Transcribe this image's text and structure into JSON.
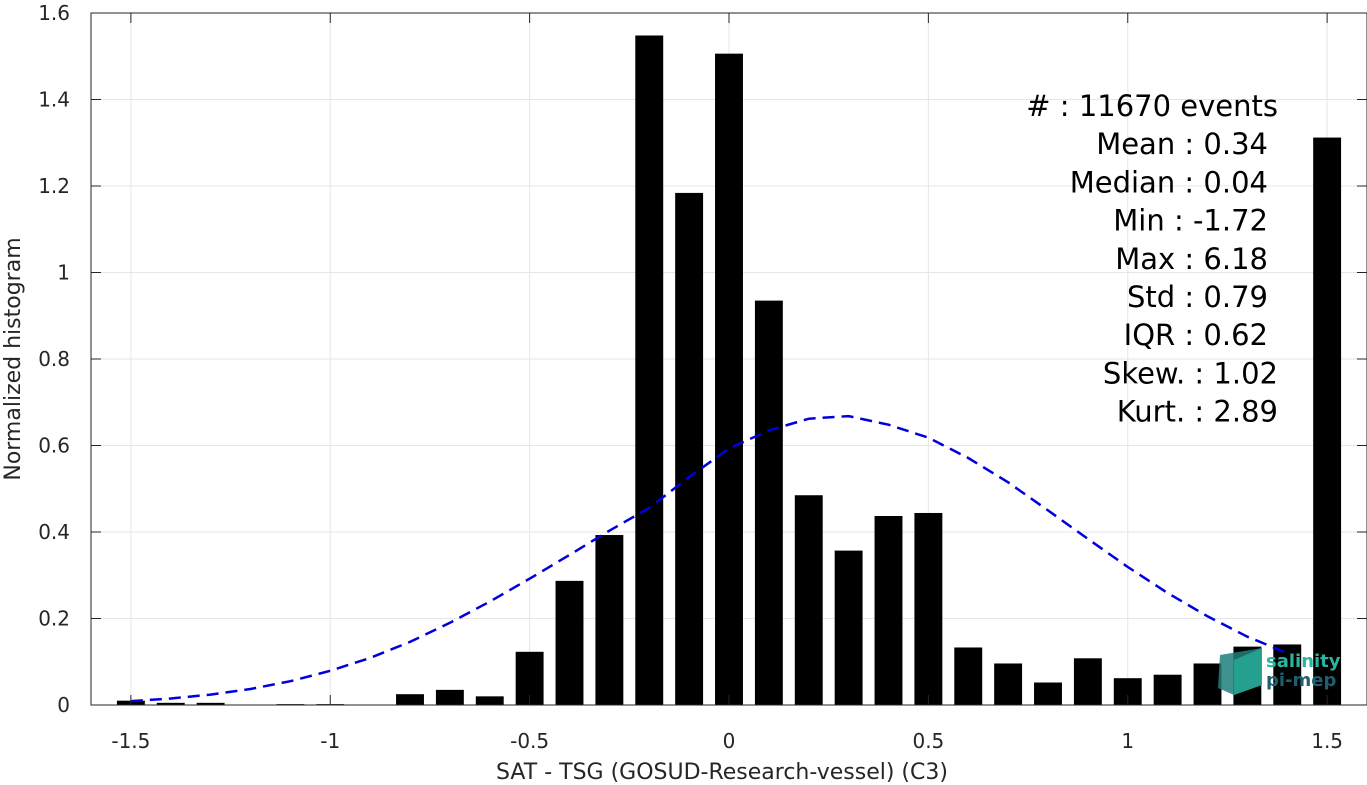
{
  "chart_data": {
    "type": "bar",
    "xlabel": "SAT - TSG (GOSUD-Research-vessel) (C3)",
    "ylabel": "Normalized histogram",
    "xlim": [
      -1.6,
      1.6
    ],
    "ylim": [
      0,
      1.6
    ],
    "grid": true,
    "x_ticks": [
      -1.5,
      -1,
      -0.5,
      0,
      0.5,
      1,
      1.5
    ],
    "x_tick_labels": [
      "-1.5",
      "-1",
      "-0.5",
      "0",
      "0.5",
      "1",
      "1.5"
    ],
    "y_ticks": [
      0,
      0.2,
      0.4,
      0.6,
      0.8,
      1,
      1.2,
      1.4,
      1.6
    ],
    "y_tick_labels": [
      "0",
      "0.2",
      "0.4",
      "0.6",
      "0.8",
      "1",
      "1.2",
      "1.4",
      "1.6"
    ],
    "bar_width": 0.07,
    "colors": {
      "bars": "#000000",
      "fit": "#0000dd",
      "grid": "#e6e6e6",
      "axis": "#262626",
      "logo_top": "#2bb5a0",
      "logo_bottom": "#1f5f6e"
    },
    "series": [
      {
        "x": [
          -1.5,
          -1.4,
          -1.3,
          -1.2,
          -1.1,
          -1.0,
          -0.9,
          -0.8,
          -0.7,
          -0.6,
          -0.5,
          -0.4,
          -0.3,
          -0.2,
          -0.1,
          0.0,
          0.1,
          0.2,
          0.3,
          0.4,
          0.5,
          0.6,
          0.7,
          0.8,
          0.9,
          1.0,
          1.1,
          1.2,
          1.3,
          1.4,
          1.5
        ],
        "values": [
          0.01,
          0.005,
          0.005,
          0.0,
          0.002,
          0.002,
          0.0,
          0.025,
          0.035,
          0.02,
          0.123,
          0.287,
          0.393,
          1.548,
          1.184,
          1.506,
          0.935,
          0.485,
          0.357,
          0.437,
          0.444,
          0.133,
          0.096,
          0.052,
          0.108,
          0.062,
          0.07,
          0.096,
          0.135,
          0.14,
          1.312
        ]
      },
      {
        "type": "line",
        "style": "dashed",
        "x": [
          -1.5,
          -1.4,
          -1.3,
          -1.2,
          -1.1,
          -1.0,
          -0.9,
          -0.8,
          -0.7,
          -0.6,
          -0.5,
          -0.4,
          -0.3,
          -0.2,
          -0.1,
          0.0,
          0.1,
          0.2,
          0.3,
          0.4,
          0.5,
          0.6,
          0.7,
          0.8,
          0.9,
          1.0,
          1.1,
          1.2,
          1.3,
          1.4
        ],
        "values": [
          0.009,
          0.015,
          0.024,
          0.037,
          0.055,
          0.079,
          0.109,
          0.146,
          0.19,
          0.239,
          0.292,
          0.347,
          0.403,
          0.456,
          0.527,
          0.593,
          0.635,
          0.662,
          0.668,
          0.648,
          0.618,
          0.571,
          0.515,
          0.45,
          0.384,
          0.319,
          0.259,
          0.205,
          0.158,
          0.12
        ]
      }
    ]
  },
  "stats": [
    {
      "label": "#",
      "sep": ": ",
      "value": "11670 events"
    },
    {
      "label": "Mean",
      "sep": " : ",
      "value": "0.34"
    },
    {
      "label": "Median",
      "sep": " : ",
      "value": "0.04"
    },
    {
      "label": "Min",
      "sep": " : ",
      "value": "-1.72"
    },
    {
      "label": "Max",
      "sep": " : ",
      "value": "6.18"
    },
    {
      "label": "Std",
      "sep": " : ",
      "value": "0.79"
    },
    {
      "label": "IQR",
      "sep": " : ",
      "value": "0.62"
    },
    {
      "label": "Skew.",
      "sep": " : ",
      "value": "1.02"
    },
    {
      "label": "Kurt.",
      "sep": " : ",
      "value": "2.89"
    }
  ],
  "logo": {
    "line1": "salinity",
    "line2": "pi-mep"
  }
}
